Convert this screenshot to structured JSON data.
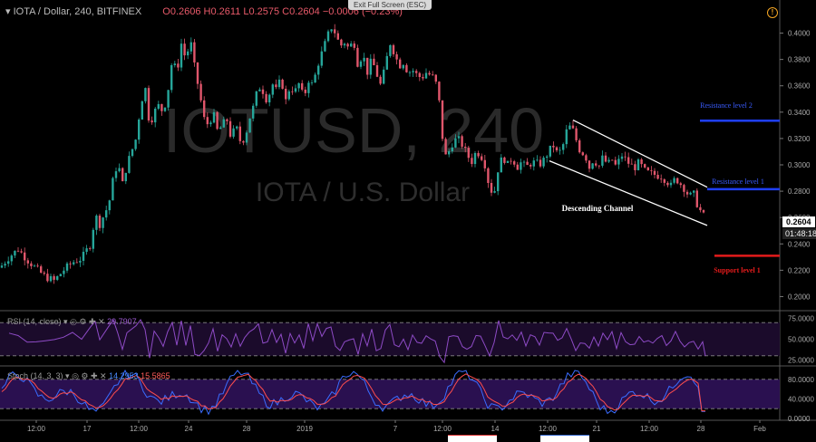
{
  "header": {
    "symbol": "IOTA / Dollar, 240, BITFINEX",
    "ohlc": "O0.2606  H0.2611  L0.2575  C0.2604  −0.0006 (−0.23%)",
    "exit_fullscreen": "Exit Full Screen (ESC)",
    "alert_icon": "!"
  },
  "watermark": {
    "main": "IOTUSD, 240",
    "sub": "IOTA / U.S. Dollar"
  },
  "price_label": "0.2604",
  "countdown": "01:48:18",
  "annotations": {
    "channel": "Descending Channel",
    "resistance2": "Resistance level 2",
    "resistance1": "Resistance level 1",
    "support1": "Support level 1"
  },
  "rsi_panel": {
    "label": "RSI (14, close)",
    "value": "29.7907"
  },
  "stoch_panel": {
    "label": "Stoch (14, 3, 3)",
    "k": "14.2953",
    "d": "15.5865"
  },
  "colors": {
    "up": "#26a69a",
    "down": "#e0566b",
    "resistance": "#1f3fff",
    "support": "#e31b1b",
    "rsi": "#8e4bc6",
    "stoch_k": "#3a6cff",
    "stoch_d": "#ff4d4d",
    "panel_bg": "#1b0b2b"
  },
  "chart_data": {
    "type": "candlestick",
    "title": "IOTA / Dollar, 240, BITFINEX",
    "ylabel": "",
    "ylim": [
      0.19,
      0.41
    ],
    "y_ticks": [
      "0.4000",
      "0.3800",
      "0.3600",
      "0.3400",
      "0.3200",
      "0.3000",
      "0.2800",
      "0.2600",
      "0.2400",
      "0.2200",
      "0.2000"
    ],
    "x_ticks": [
      "12:00",
      "17",
      "12:00",
      "24",
      "28",
      "2019",
      "7",
      "12:00",
      "14",
      "12:00",
      "21",
      "12:00",
      "28",
      "Feb"
    ],
    "close_path": [
      [
        0,
        0.222
      ],
      [
        10,
        0.23
      ],
      [
        20,
        0.236
      ],
      [
        30,
        0.228
      ],
      [
        40,
        0.221
      ],
      [
        50,
        0.215
      ],
      [
        60,
        0.212
      ],
      [
        70,
        0.22
      ],
      [
        80,
        0.226
      ],
      [
        90,
        0.229
      ],
      [
        100,
        0.24
      ],
      [
        105,
        0.262
      ],
      [
        110,
        0.255
      ],
      [
        120,
        0.27
      ],
      [
        125,
        0.29
      ],
      [
        130,
        0.302
      ],
      [
        135,
        0.285
      ],
      [
        140,
        0.3
      ],
      [
        150,
        0.32
      ],
      [
        155,
        0.345
      ],
      [
        160,
        0.36
      ],
      [
        165,
        0.33
      ],
      [
        170,
        0.34
      ],
      [
        175,
        0.345
      ],
      [
        180,
        0.34
      ],
      [
        185,
        0.355
      ],
      [
        190,
        0.38
      ],
      [
        195,
        0.37
      ],
      [
        200,
        0.392
      ],
      [
        205,
        0.38
      ],
      [
        210,
        0.395
      ],
      [
        215,
        0.372
      ],
      [
        220,
        0.355
      ],
      [
        225,
        0.335
      ],
      [
        230,
        0.33
      ],
      [
        235,
        0.34
      ],
      [
        240,
        0.325
      ],
      [
        245,
        0.33
      ],
      [
        250,
        0.335
      ],
      [
        255,
        0.32
      ],
      [
        260,
        0.33
      ],
      [
        265,
        0.318
      ],
      [
        270,
        0.32
      ],
      [
        275,
        0.335
      ],
      [
        280,
        0.345
      ],
      [
        285,
        0.36
      ],
      [
        290,
        0.356
      ],
      [
        295,
        0.348
      ],
      [
        300,
        0.362
      ],
      [
        305,
        0.356
      ],
      [
        310,
        0.366
      ],
      [
        315,
        0.348
      ],
      [
        320,
        0.36
      ],
      [
        325,
        0.355
      ],
      [
        330,
        0.362
      ],
      [
        335,
        0.35
      ],
      [
        340,
        0.365
      ],
      [
        345,
        0.36
      ],
      [
        350,
        0.375
      ],
      [
        355,
        0.385
      ],
      [
        360,
        0.395
      ],
      [
        365,
        0.405
      ],
      [
        370,
        0.4
      ],
      [
        375,
        0.39
      ],
      [
        380,
        0.393
      ],
      [
        385,
        0.388
      ],
      [
        390,
        0.395
      ],
      [
        395,
        0.375
      ],
      [
        400,
        0.385
      ],
      [
        405,
        0.37
      ],
      [
        410,
        0.38
      ],
      [
        415,
        0.37
      ],
      [
        420,
        0.36
      ],
      [
        425,
        0.375
      ],
      [
        430,
        0.393
      ],
      [
        435,
        0.385
      ],
      [
        440,
        0.375
      ],
      [
        445,
        0.378
      ],
      [
        450,
        0.37
      ],
      [
        455,
        0.372
      ],
      [
        460,
        0.368
      ],
      [
        465,
        0.366
      ],
      [
        470,
        0.37
      ],
      [
        475,
        0.368
      ],
      [
        480,
        0.365
      ],
      [
        485,
        0.345
      ],
      [
        490,
        0.305
      ],
      [
        495,
        0.31
      ],
      [
        500,
        0.318
      ],
      [
        505,
        0.32
      ],
      [
        510,
        0.315
      ],
      [
        515,
        0.308
      ],
      [
        520,
        0.302
      ],
      [
        525,
        0.31
      ],
      [
        530,
        0.308
      ],
      [
        535,
        0.3
      ],
      [
        540,
        0.282
      ],
      [
        545,
        0.278
      ],
      [
        550,
        0.3
      ],
      [
        555,
        0.306
      ],
      [
        560,
        0.3
      ],
      [
        565,
        0.306
      ],
      [
        570,
        0.298
      ],
      [
        575,
        0.302
      ],
      [
        580,
        0.298
      ],
      [
        585,
        0.301
      ],
      [
        590,
        0.302
      ],
      [
        595,
        0.3
      ],
      [
        600,
        0.304
      ],
      [
        605,
        0.31
      ],
      [
        610,
        0.315
      ],
      [
        615,
        0.308
      ],
      [
        620,
        0.312
      ],
      [
        625,
        0.326
      ],
      [
        630,
        0.33
      ],
      [
        635,
        0.32
      ],
      [
        640,
        0.31
      ],
      [
        645,
        0.308
      ],
      [
        650,
        0.298
      ],
      [
        655,
        0.305
      ],
      [
        660,
        0.298
      ],
      [
        665,
        0.306
      ],
      [
        670,
        0.3
      ],
      [
        675,
        0.304
      ],
      [
        680,
        0.298
      ],
      [
        685,
        0.308
      ],
      [
        690,
        0.304
      ],
      [
        695,
        0.3
      ],
      [
        700,
        0.298
      ],
      [
        705,
        0.302
      ],
      [
        710,
        0.296
      ],
      [
        715,
        0.294
      ],
      [
        720,
        0.293
      ],
      [
        725,
        0.292
      ],
      [
        730,
        0.291
      ],
      [
        735,
        0.288
      ],
      [
        740,
        0.284
      ],
      [
        745,
        0.29
      ],
      [
        750,
        0.286
      ],
      [
        755,
        0.282
      ],
      [
        760,
        0.276
      ],
      [
        765,
        0.278
      ],
      [
        770,
        0.268
      ],
      [
        775,
        0.262
      ],
      [
        778,
        0.26
      ]
    ],
    "channel": {
      "upper": [
        [
          632,
          0.334
        ],
        [
          780,
          0.283
        ]
      ],
      "lower": [
        [
          606,
          0.303
        ],
        [
          780,
          0.254
        ]
      ]
    },
    "levels": [
      {
        "name": "Resistance level 2",
        "y": 0.3335
      },
      {
        "name": "Resistance level 1",
        "y": 0.2815
      },
      {
        "name": "Support level 1",
        "y": 0.231
      }
    ],
    "rsi": {
      "ylim": [
        20,
        80
      ],
      "levels": [
        70,
        30
      ],
      "y_ticks": [
        "75.0000",
        "50.0000",
        "25.0000"
      ],
      "last": 29.79
    },
    "stoch": {
      "ylim": [
        0,
        100
      ],
      "levels": [
        80,
        20
      ],
      "y_ticks": [
        "80.0000",
        "40.0000",
        "0.0000"
      ],
      "k_last": 14.3,
      "d_last": 15.59
    }
  }
}
